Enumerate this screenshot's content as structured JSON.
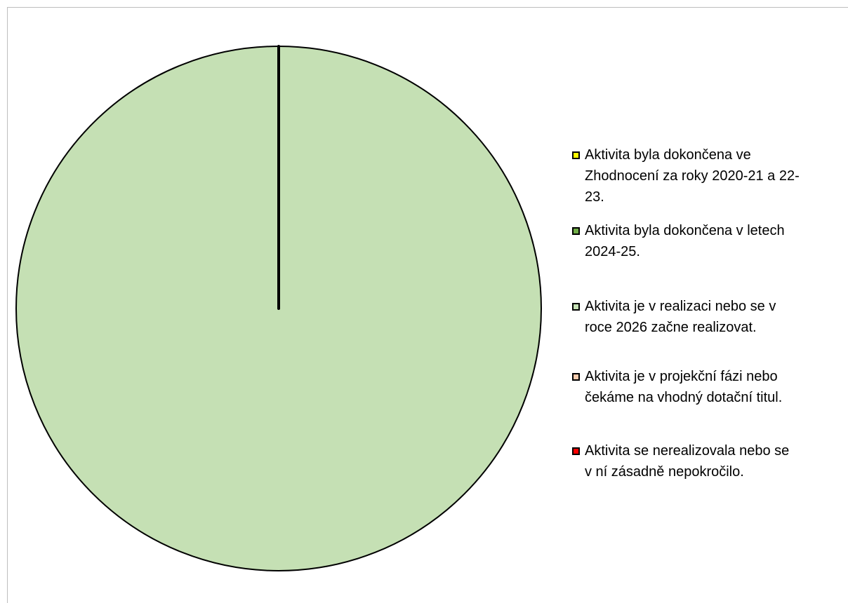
{
  "chart_data": {
    "type": "pie",
    "categories": [
      "Aktivita byla dokončena ve Zhodnocení za roky 2020-21 a 22-23.",
      "Aktivita byla dokončena v letech 2024-25.",
      "Aktivita je v realizaci nebo se v roce 2026 začne realizovat.",
      "Aktivita je v projekční fázi nebo čekáme na vhodný dotační titul.",
      "Aktivita se nerealizovala nebo se v ní zásadně nepokročilo."
    ],
    "values": [
      0,
      0,
      100,
      0,
      0
    ],
    "colors": [
      "#ffff00",
      "#70ad47",
      "#c5e0b4",
      "#f8cbad",
      "#ff0000"
    ],
    "legend_position": "right",
    "legend_lines": [
      "Aktivita byla dokončena ve\nZhodnocení za roky 2020-21 a 22-\n23.",
      "Aktivita byla dokončena v letech\n2024-25.",
      "Aktivita je v realizaci nebo se v\nroce 2026 začne realizovat.",
      "Aktivita je v projekční fázi nebo\nčekáme na vhodný dotační titul.",
      "Aktivita se nerealizovala nebo se\nv ní zásadně nepokročilo."
    ]
  }
}
